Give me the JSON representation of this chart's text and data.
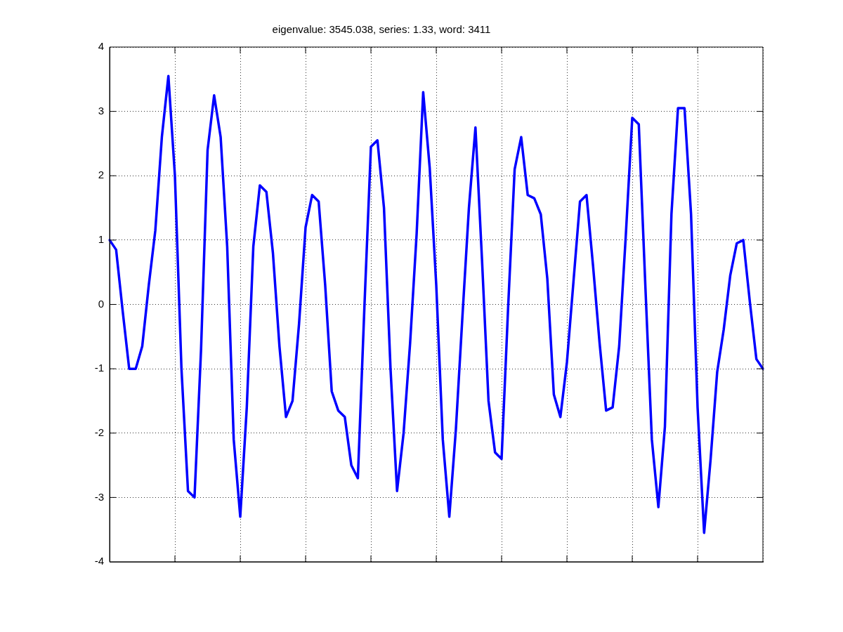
{
  "chart_data": {
    "type": "line",
    "title": "eigenvalue: 3545.038, series: 1.33, word: 3411",
    "categories": [
      null,
      null,
      null,
      null,
      null,
      null,
      null,
      null,
      null,
      null,
      null,
      null,
      null,
      null,
      null,
      null,
      null,
      null,
      null,
      null,
      null,
      null,
      null,
      null,
      null,
      null,
      null,
      null,
      null,
      null,
      null,
      null,
      null,
      null,
      null,
      null,
      null,
      null,
      null,
      null,
      null,
      null,
      null,
      null,
      null,
      null,
      null,
      null,
      null,
      null,
      null,
      null,
      null,
      null,
      null,
      null,
      null,
      null,
      null,
      null,
      null,
      null,
      null,
      null,
      null,
      null,
      null,
      null,
      null,
      null,
      null,
      null,
      null,
      null,
      null,
      null,
      null,
      null,
      null,
      null,
      null,
      null,
      null,
      null,
      null,
      null,
      null,
      null,
      null,
      null,
      null,
      null,
      null,
      null,
      null,
      null,
      null,
      null,
      null,
      null,
      null
    ],
    "series": [
      {
        "color": "#0000ff",
        "values": [
          1.0,
          0.85,
          -0.1,
          -1.0,
          -1.0,
          -0.65,
          0.3,
          1.15,
          2.6,
          3.55,
          2.0,
          -1.0,
          -2.9,
          -3.0,
          -0.7,
          2.4,
          3.25,
          2.6,
          0.9,
          -2.1,
          -3.3,
          -1.6,
          0.9,
          1.85,
          1.75,
          0.8,
          -0.65,
          -1.75,
          -1.5,
          -0.3,
          1.2,
          1.7,
          1.6,
          0.3,
          -1.35,
          -1.65,
          -1.75,
          -2.5,
          -2.7,
          -0.05,
          2.45,
          2.55,
          1.5,
          -1.0,
          -2.9,
          -2.0,
          -0.6,
          1.1,
          3.3,
          2.12,
          0.3,
          -2.1,
          -3.3,
          -1.95,
          -0.2,
          1.5,
          2.75,
          0.7,
          -1.5,
          -2.3,
          -2.4,
          -0.05,
          2.1,
          2.6,
          1.7,
          1.65,
          1.4,
          0.4,
          -1.4,
          -1.75,
          -0.9,
          0.35,
          1.6,
          1.7,
          0.6,
          -0.6,
          -1.65,
          -1.6,
          -0.65,
          1.05,
          2.9,
          2.8,
          0.3,
          -2.1,
          -3.15,
          -1.9,
          1.4,
          3.05,
          3.05,
          1.4,
          -1.6,
          -3.55,
          -2.4,
          -1.05,
          -0.39,
          0.45,
          0.95,
          1.0,
          0.04,
          -0.85,
          -1.0
        ]
      }
    ],
    "ylim": [
      -4,
      4
    ],
    "yticks": [
      -4,
      -3,
      -2,
      -1,
      0,
      1,
      2,
      3,
      4
    ],
    "grid": true,
    "legend": false,
    "tick_labels": "y",
    "marker": "none",
    "line_style": "solid"
  }
}
